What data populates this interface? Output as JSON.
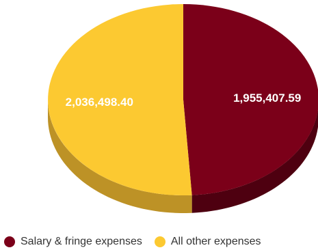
{
  "chart_data": {
    "type": "pie",
    "style": "3d",
    "categories": [
      "Salary & fringe expenses",
      "All other expenses"
    ],
    "values": [
      1955407.59,
      2036498.4
    ],
    "data_labels": [
      "1,955,407.59",
      "2,036,498.40"
    ],
    "legend": {
      "position": "bottom-left",
      "items": [
        "Salary & fringe expenses",
        "All other expenses"
      ]
    },
    "colors": [
      "#7b0019",
      "#fcc931"
    ],
    "side_colors": [
      "#4e0010",
      "#bd9226"
    ]
  }
}
